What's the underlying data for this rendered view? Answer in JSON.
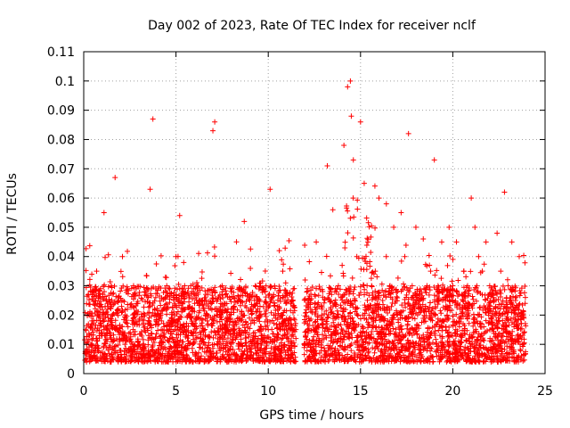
{
  "chart_data": {
    "type": "scatter",
    "title": "Day 002 of 2023, Rate Of TEC Index for receiver nclf",
    "xlabel": "GPS time / hours",
    "ylabel": "ROTI / TECUs",
    "xlim": [
      0,
      25
    ],
    "ylim": [
      0,
      0.11
    ],
    "x_ticks": [
      0,
      5,
      10,
      15,
      20,
      25
    ],
    "x_tick_labels": [
      "0",
      "5",
      "10",
      "15",
      "20",
      "25"
    ],
    "y_ticks": [
      0,
      0.01,
      0.02,
      0.03,
      0.04,
      0.05,
      0.06,
      0.07,
      0.08,
      0.09,
      0.1,
      0.11
    ],
    "y_tick_labels": [
      "0",
      "0.01",
      "0.02",
      "0.03",
      "0.04",
      "0.05",
      "0.06",
      "0.07",
      "0.08",
      "0.09",
      "0.1",
      "0.11"
    ],
    "grid": true,
    "marker": "+",
    "color": "#ff0000",
    "series": [
      {
        "name": "ROTI",
        "x": [
          0.1,
          0.3,
          0.5,
          0.7,
          0.9,
          1.1,
          1.3,
          1.5,
          1.7,
          1.9,
          2.1,
          2.4,
          2.7,
          3.0,
          3.3,
          3.6,
          3.75,
          3.9,
          4.2,
          4.5,
          4.8,
          5.0,
          5.2,
          5.5,
          5.8,
          6.1,
          6.4,
          6.7,
          7.0,
          7.1,
          7.2,
          7.5,
          7.8,
          8.1,
          8.4,
          8.7,
          9.0,
          9.3,
          9.6,
          9.9,
          10.1,
          10.3,
          10.6,
          10.9,
          11.2,
          11.5,
          12.0,
          12.3,
          12.6,
          12.9,
          13.2,
          13.5,
          13.8,
          14.1,
          14.3,
          14.45,
          14.5,
          14.6,
          14.8,
          15.0,
          15.2,
          15.4,
          15.6,
          15.8,
          16.0,
          16.2,
          16.4,
          16.6,
          16.8,
          17.0,
          17.2,
          17.4,
          17.6,
          17.8,
          18.0,
          18.2,
          18.4,
          18.6,
          18.8,
          19.0,
          19.2,
          19.4,
          19.6,
          19.8,
          20.0,
          20.2,
          20.4,
          20.6,
          20.8,
          21.0,
          21.2,
          21.4,
          21.6,
          21.8,
          22.0,
          22.2,
          22.4,
          22.6,
          22.8,
          23.0,
          23.2,
          23.4,
          23.6,
          23.8
        ],
        "y": [
          0.015,
          0.02,
          0.012,
          0.035,
          0.018,
          0.055,
          0.022,
          0.03,
          0.067,
          0.025,
          0.04,
          0.016,
          0.03,
          0.018,
          0.028,
          0.063,
          0.087,
          0.02,
          0.015,
          0.03,
          0.018,
          0.04,
          0.054,
          0.022,
          0.03,
          0.016,
          0.025,
          0.018,
          0.083,
          0.086,
          0.02,
          0.03,
          0.015,
          0.022,
          0.018,
          0.052,
          0.025,
          0.03,
          0.016,
          0.022,
          0.063,
          0.02,
          0.042,
          0.018,
          0.015,
          0.012,
          0.032,
          0.022,
          0.045,
          0.02,
          0.071,
          0.056,
          0.03,
          0.078,
          0.098,
          0.1,
          0.088,
          0.06,
          0.04,
          0.086,
          0.065,
          0.045,
          0.03,
          0.035,
          0.06,
          0.025,
          0.058,
          0.03,
          0.05,
          0.028,
          0.055,
          0.04,
          0.082,
          0.03,
          0.05,
          0.025,
          0.046,
          0.03,
          0.035,
          0.073,
          0.03,
          0.045,
          0.025,
          0.05,
          0.03,
          0.045,
          0.022,
          0.035,
          0.03,
          0.06,
          0.05,
          0.04,
          0.035,
          0.045,
          0.03,
          0.025,
          0.048,
          0.035,
          0.062,
          0.03,
          0.045,
          0.025,
          0.04,
          0.02
        ]
      }
    ],
    "extra_series_note": "dense band of ROTI values between about 0.005 and 0.03 across 0–11.5 h and 12–24 h; data gap near 11.5–12 h"
  }
}
